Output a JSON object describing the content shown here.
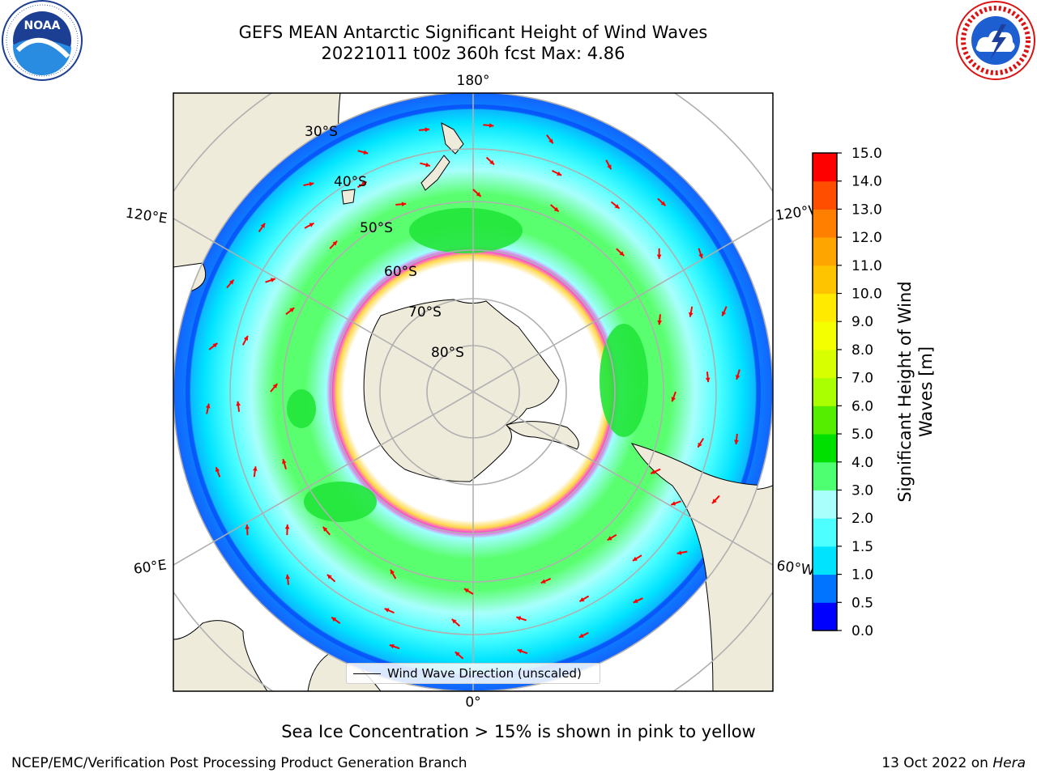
{
  "header": {
    "title_line1": "GEFS MEAN Antarctic Significant Height of Wind Waves",
    "title_line2": "20221011 t00z 360h fcst   Max: 4.86"
  },
  "logos": {
    "left": {
      "name": "NOAA",
      "ring_text": "NATIONAL OCEANIC AND ATMOSPHERIC ADMINISTRATION · U.S. DEPARTMENT OF COMMERCE"
    },
    "right": {
      "name": "National Weather Service",
      "ring_text": "NATIONAL WEATHER SERVICE"
    }
  },
  "map": {
    "projection": "south-polar-stereographic",
    "longitude_labels": [
      "180°",
      "120°E",
      "120°W",
      "60°E",
      "60°W",
      "0°"
    ],
    "latitude_labels": [
      "30°S",
      "40°S",
      "50°S",
      "60°S",
      "70°S",
      "80°S"
    ],
    "colors": {
      "land": "#efebdb",
      "ice_free_sea_high": "#5aff6f",
      "arrow": "#ff0000",
      "sea_ice_edge": "#ff44dd"
    }
  },
  "legend": {
    "label": "Wind Wave Direction (unscaled)"
  },
  "colorbar": {
    "label_line1": "Significant Height of Wind",
    "label_line2": "Waves [m]",
    "ticks": [
      "0.0",
      "0.5",
      "1.0",
      "1.5",
      "2.0",
      "3.0",
      "4.0",
      "5.0",
      "6.0",
      "7.0",
      "8.0",
      "9.0",
      "10.0",
      "11.0",
      "12.0",
      "13.0",
      "14.0",
      "15.0"
    ],
    "colors": [
      "#0000ff",
      "#0073ff",
      "#00e3ff",
      "#4dffff",
      "#a8fffc",
      "#4eff72",
      "#00e000",
      "#55ee00",
      "#aaff00",
      "#d8ff00",
      "#f4ff00",
      "#ffea00",
      "#ffc400",
      "#ffa500",
      "#ff8000",
      "#ff4e00",
      "#ff0000"
    ]
  },
  "note": "Sea Ice Concentration > 15% is shown in pink to yellow",
  "footer": {
    "left": "NCEP/EMC/Verification Post Processing Product Generation Branch",
    "right_prefix": "13 Oct 2022 on ",
    "right_host": "Hera"
  }
}
